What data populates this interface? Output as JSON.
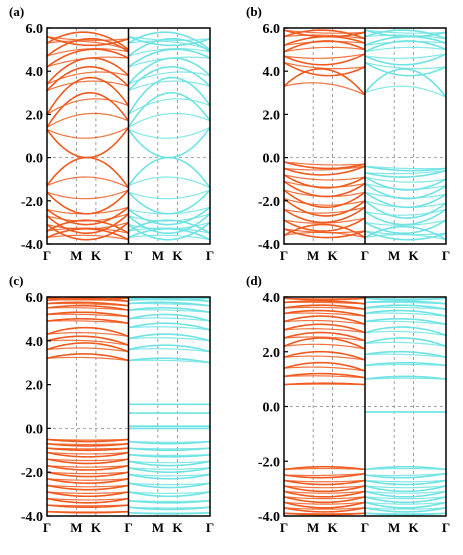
{
  "colors": {
    "spin_up": "#f05a1e",
    "spin_down": "#6fe3e3",
    "frame": "#000000",
    "guide": "#888888"
  },
  "chart_data": [
    {
      "type": "line",
      "panel_label": "(a)",
      "ylim": [
        -4.0,
        6.0
      ],
      "yticks": [
        "6.0",
        "4.0",
        "2.0",
        "0.0",
        "-2.0",
        "-4.0"
      ],
      "ytick_values": [
        6,
        4,
        2,
        0,
        -2,
        -4
      ],
      "kpoint_labels": [
        "Γ",
        "M",
        "K",
        "Γ",
        "M",
        "K",
        "Γ"
      ],
      "fermi_level": 0.0,
      "series": [
        {
          "name": "",
          "color_key": "spin_up",
          "bands": [
            {
              "start": 5.6,
              "mid": 5.2,
              "end": 5.5
            },
            {
              "start": 5.3,
              "mid": 5.8,
              "end": 5.0
            },
            {
              "start": 4.7,
              "mid": 5.5,
              "end": 4.9
            },
            {
              "start": 4.2,
              "mid": 5.0,
              "end": 4.6
            },
            {
              "start": 3.4,
              "mid": 4.6,
              "end": 3.8
            },
            {
              "start": 3.1,
              "mid": 4.2,
              "end": 3.3
            },
            {
              "start": 2.0,
              "mid": 3.7,
              "end": 2.4
            },
            {
              "start": 1.4,
              "mid": 3.0,
              "end": 1.7
            },
            {
              "start": 1.3,
              "mid": 0.0,
              "end": 1.4
            },
            {
              "start": -1.3,
              "mid": 0.0,
              "end": -1.4
            },
            {
              "start": -1.6,
              "mid": -2.6,
              "end": -1.5
            },
            {
              "start": -2.4,
              "mid": -3.1,
              "end": -2.3
            },
            {
              "start": -2.7,
              "mid": -3.5,
              "end": -2.6
            },
            {
              "start": -3.1,
              "mid": -3.8,
              "end": -3.0
            },
            {
              "start": -3.4,
              "mid": -2.9,
              "end": -3.5
            },
            {
              "start": -3.7,
              "mid": -3.3,
              "end": -3.8
            }
          ]
        },
        {
          "name": "",
          "color_key": "spin_down",
          "bands": [
            {
              "start": 5.6,
              "mid": 5.2,
              "end": 5.5
            },
            {
              "start": 5.3,
              "mid": 5.8,
              "end": 5.0
            },
            {
              "start": 4.7,
              "mid": 5.5,
              "end": 4.9
            },
            {
              "start": 4.2,
              "mid": 5.0,
              "end": 4.6
            },
            {
              "start": 3.4,
              "mid": 4.6,
              "end": 3.8
            },
            {
              "start": 3.1,
              "mid": 4.2,
              "end": 3.3
            },
            {
              "start": 2.0,
              "mid": 3.7,
              "end": 2.4
            },
            {
              "start": 1.4,
              "mid": 3.0,
              "end": 1.7
            },
            {
              "start": 1.3,
              "mid": 0.0,
              "end": 1.4
            },
            {
              "start": -1.3,
              "mid": 0.0,
              "end": -1.4
            },
            {
              "start": -1.6,
              "mid": -2.6,
              "end": -1.5
            },
            {
              "start": -2.4,
              "mid": -3.1,
              "end": -2.3
            },
            {
              "start": -2.7,
              "mid": -3.5,
              "end": -2.6
            },
            {
              "start": -3.1,
              "mid": -3.8,
              "end": -3.0
            },
            {
              "start": -3.4,
              "mid": -2.9,
              "end": -3.5
            },
            {
              "start": -3.7,
              "mid": -3.3,
              "end": -3.8
            }
          ]
        }
      ]
    },
    {
      "type": "line",
      "panel_label": "(b)",
      "ylim": [
        -4.0,
        6.0
      ],
      "yticks": [
        "6.0",
        "4.0",
        "2.0",
        "0.0",
        "-2.0",
        "-4.0"
      ],
      "ytick_values": [
        6,
        4,
        2,
        0,
        -2,
        -4
      ],
      "kpoint_labels": [
        "Γ",
        "M",
        "K",
        "Γ",
        "M",
        "K",
        "Γ"
      ],
      "fermi_level": 0.0,
      "series": [
        {
          "name": "",
          "color_key": "spin_up",
          "bands": [
            {
              "start": 5.9,
              "mid": 5.6,
              "end": 5.8
            },
            {
              "start": 5.6,
              "mid": 5.9,
              "end": 5.5
            },
            {
              "start": 5.2,
              "mid": 5.6,
              "end": 5.3
            },
            {
              "start": 4.9,
              "mid": 5.4,
              "end": 5.0
            },
            {
              "start": 4.7,
              "mid": 4.3,
              "end": 4.8
            },
            {
              "start": 4.4,
              "mid": 3.8,
              "end": 4.2
            },
            {
              "start": 3.3,
              "mid": 4.1,
              "end": 2.9
            },
            {
              "start": -0.2,
              "mid": -0.5,
              "end": -0.3
            },
            {
              "start": -0.5,
              "mid": -0.8,
              "end": -0.4
            },
            {
              "start": -0.8,
              "mid": -1.4,
              "end": -0.9
            },
            {
              "start": -1.1,
              "mid": -1.8,
              "end": -1.2
            },
            {
              "start": -1.5,
              "mid": -2.3,
              "end": -1.6
            },
            {
              "start": -1.9,
              "mid": -2.7,
              "end": -2.0
            },
            {
              "start": -2.4,
              "mid": -3.0,
              "end": -2.3
            },
            {
              "start": -2.9,
              "mid": -3.4,
              "end": -2.8
            },
            {
              "start": -3.3,
              "mid": -3.7,
              "end": -3.4
            },
            {
              "start": -3.6,
              "mid": -3.1,
              "end": -3.7
            }
          ]
        },
        {
          "name": "",
          "color_key": "spin_down",
          "bands": [
            {
              "start": 5.9,
              "mid": 5.6,
              "end": 5.8
            },
            {
              "start": 5.6,
              "mid": 5.9,
              "end": 5.5
            },
            {
              "start": 5.2,
              "mid": 5.6,
              "end": 5.3
            },
            {
              "start": 4.9,
              "mid": 5.4,
              "end": 5.0
            },
            {
              "start": 4.7,
              "mid": 4.3,
              "end": 4.8
            },
            {
              "start": 4.4,
              "mid": 3.8,
              "end": 4.2
            },
            {
              "start": 3.0,
              "mid": 4.1,
              "end": 2.8
            },
            {
              "start": -0.4,
              "mid": -0.6,
              "end": -0.5
            },
            {
              "start": -0.7,
              "mid": -0.9,
              "end": -0.6
            },
            {
              "start": -0.9,
              "mid": -1.5,
              "end": -1.0
            },
            {
              "start": -1.2,
              "mid": -1.9,
              "end": -1.3
            },
            {
              "start": -1.6,
              "mid": -2.3,
              "end": -1.7
            },
            {
              "start": -2.0,
              "mid": -2.8,
              "end": -2.1
            },
            {
              "start": -2.5,
              "mid": -3.1,
              "end": -2.4
            },
            {
              "start": -3.0,
              "mid": -3.5,
              "end": -2.9
            },
            {
              "start": -3.4,
              "mid": -3.8,
              "end": -3.5
            },
            {
              "start": -3.7,
              "mid": -3.2,
              "end": -3.8
            }
          ]
        }
      ]
    },
    {
      "type": "line",
      "panel_label": "(c)",
      "ylim": [
        -4.0,
        6.0
      ],
      "yticks": [
        "6.0",
        "4.0",
        "2.0",
        "0.0",
        "-2.0",
        "-4.0"
      ],
      "ytick_values": [
        6,
        4,
        2,
        0,
        -2,
        -4
      ],
      "kpoint_labels": [
        "Γ",
        "M",
        "K",
        "Γ",
        "M",
        "K",
        "Γ"
      ],
      "fermi_level": 0.0,
      "series": [
        {
          "name": "",
          "color_key": "spin_up",
          "bands": [
            {
              "start": 5.95,
              "mid": 5.9,
              "end": 5.95
            },
            {
              "start": 5.85,
              "mid": 5.95,
              "end": 5.8
            },
            {
              "start": 5.7,
              "mid": 5.75,
              "end": 5.6
            },
            {
              "start": 5.5,
              "mid": 5.6,
              "end": 5.4
            },
            {
              "start": 5.2,
              "mid": 5.3,
              "end": 5.1
            },
            {
              "start": 4.9,
              "mid": 5.0,
              "end": 4.8
            },
            {
              "start": 4.3,
              "mid": 4.6,
              "end": 4.2
            },
            {
              "start": 4.0,
              "mid": 4.2,
              "end": 3.8
            },
            {
              "start": 3.6,
              "mid": 3.9,
              "end": 3.5
            },
            {
              "start": 3.2,
              "mid": 3.4,
              "end": 3.1
            },
            {
              "start": -0.5,
              "mid": -0.6,
              "end": -0.5
            },
            {
              "start": -0.7,
              "mid": -0.8,
              "end": -0.7
            },
            {
              "start": -0.9,
              "mid": -1.0,
              "end": -0.9
            },
            {
              "start": -1.1,
              "mid": -1.3,
              "end": -1.1
            },
            {
              "start": -1.4,
              "mid": -1.6,
              "end": -1.4
            },
            {
              "start": -1.7,
              "mid": -1.9,
              "end": -1.7
            },
            {
              "start": -2.0,
              "mid": -2.2,
              "end": -2.0
            },
            {
              "start": -2.3,
              "mid": -2.5,
              "end": -2.3
            },
            {
              "start": -2.6,
              "mid": -2.8,
              "end": -2.6
            },
            {
              "start": -2.9,
              "mid": -3.1,
              "end": -2.9
            },
            {
              "start": -3.2,
              "mid": -3.4,
              "end": -3.2
            },
            {
              "start": -3.5,
              "mid": -3.6,
              "end": -3.5
            },
            {
              "start": -3.8,
              "mid": -3.85,
              "end": -3.8
            }
          ]
        },
        {
          "name": "",
          "color_key": "spin_down",
          "bands": [
            {
              "start": 5.95,
              "mid": 5.9,
              "end": 5.95
            },
            {
              "start": 5.85,
              "mid": 5.95,
              "end": 5.8
            },
            {
              "start": 5.7,
              "mid": 5.75,
              "end": 5.6
            },
            {
              "start": 5.4,
              "mid": 5.5,
              "end": 5.3
            },
            {
              "start": 5.0,
              "mid": 5.2,
              "end": 4.9
            },
            {
              "start": 4.6,
              "mid": 4.8,
              "end": 4.5
            },
            {
              "start": 4.1,
              "mid": 4.3,
              "end": 4.0
            },
            {
              "start": 3.6,
              "mid": 3.8,
              "end": 3.5
            },
            {
              "start": 3.1,
              "mid": 3.2,
              "end": 3.0
            },
            {
              "start": 1.1,
              "mid": 1.1,
              "end": 1.1
            },
            {
              "start": 0.7,
              "mid": 0.7,
              "end": 0.7
            },
            {
              "start": 0.1,
              "mid": 0.1,
              "end": 0.1
            },
            {
              "start": 0.0,
              "mid": 0.0,
              "end": 0.0
            },
            {
              "start": -0.6,
              "mid": -0.7,
              "end": -0.6
            },
            {
              "start": -0.9,
              "mid": -1.0,
              "end": -0.9
            },
            {
              "start": -1.2,
              "mid": -1.3,
              "end": -1.2
            },
            {
              "start": -1.5,
              "mid": -1.7,
              "end": -1.5
            },
            {
              "start": -1.8,
              "mid": -2.0,
              "end": -1.8
            },
            {
              "start": -2.1,
              "mid": -2.3,
              "end": -2.1
            },
            {
              "start": -2.5,
              "mid": -2.7,
              "end": -2.5
            },
            {
              "start": -2.9,
              "mid": -3.1,
              "end": -2.9
            },
            {
              "start": -3.3,
              "mid": -3.4,
              "end": -3.3
            },
            {
              "start": -3.6,
              "mid": -3.7,
              "end": -3.6
            },
            {
              "start": -3.85,
              "mid": -3.9,
              "end": -3.85
            }
          ]
        }
      ]
    },
    {
      "type": "line",
      "panel_label": "(d)",
      "ylim": [
        -4.0,
        4.0
      ],
      "yticks": [
        "4.0",
        "2.0",
        "0.0",
        "-2.0",
        "-4.0"
      ],
      "ytick_values": [
        4,
        2,
        0,
        -2,
        -4
      ],
      "kpoint_labels": [
        "Γ",
        "M",
        "K",
        "Γ",
        "M",
        "K",
        "Γ"
      ],
      "fermi_level": 0.0,
      "series": [
        {
          "name": "",
          "color_key": "spin_up",
          "bands": [
            {
              "start": 3.95,
              "mid": 3.9,
              "end": 3.95
            },
            {
              "start": 3.8,
              "mid": 3.85,
              "end": 3.75
            },
            {
              "start": 3.6,
              "mid": 3.7,
              "end": 3.55
            },
            {
              "start": 3.4,
              "mid": 3.5,
              "end": 3.3
            },
            {
              "start": 3.1,
              "mid": 3.3,
              "end": 3.0
            },
            {
              "start": 2.8,
              "mid": 3.0,
              "end": 2.7
            },
            {
              "start": 2.5,
              "mid": 2.7,
              "end": 2.4
            },
            {
              "start": 2.2,
              "mid": 2.5,
              "end": 2.1
            },
            {
              "start": 1.8,
              "mid": 2.0,
              "end": 1.7
            },
            {
              "start": 1.4,
              "mid": 1.6,
              "end": 1.3
            },
            {
              "start": 1.1,
              "mid": 1.2,
              "end": 1.05
            },
            {
              "start": 0.8,
              "mid": 0.85,
              "end": 0.8
            },
            {
              "start": -2.3,
              "mid": -2.2,
              "end": -2.3
            },
            {
              "start": -2.5,
              "mid": -2.6,
              "end": -2.45
            },
            {
              "start": -2.7,
              "mid": -2.85,
              "end": -2.7
            },
            {
              "start": -2.9,
              "mid": -3.1,
              "end": -2.9
            },
            {
              "start": -3.1,
              "mid": -3.3,
              "end": -3.1
            },
            {
              "start": -3.3,
              "mid": -3.5,
              "end": -3.3
            },
            {
              "start": -3.5,
              "mid": -3.7,
              "end": -3.5
            },
            {
              "start": -3.7,
              "mid": -3.85,
              "end": -3.7
            },
            {
              "start": -3.9,
              "mid": -3.95,
              "end": -3.9
            }
          ]
        },
        {
          "name": "",
          "color_key": "spin_down",
          "bands": [
            {
              "start": 3.95,
              "mid": 3.9,
              "end": 3.95
            },
            {
              "start": 3.8,
              "mid": 3.85,
              "end": 3.75
            },
            {
              "start": 3.6,
              "mid": 3.7,
              "end": 3.55
            },
            {
              "start": 3.4,
              "mid": 3.5,
              "end": 3.3
            },
            {
              "start": 3.1,
              "mid": 3.2,
              "end": 3.0
            },
            {
              "start": 2.7,
              "mid": 2.9,
              "end": 2.6
            },
            {
              "start": 2.3,
              "mid": 2.5,
              "end": 2.2
            },
            {
              "start": 1.9,
              "mid": 2.0,
              "end": 1.8
            },
            {
              "start": 1.5,
              "mid": 1.6,
              "end": 1.5
            },
            {
              "start": 1.0,
              "mid": 1.1,
              "end": 1.0
            },
            {
              "start": -0.2,
              "mid": -0.2,
              "end": -0.2
            },
            {
              "start": -2.3,
              "mid": -2.2,
              "end": -2.3
            },
            {
              "start": -2.5,
              "mid": -2.6,
              "end": -2.45
            },
            {
              "start": -2.7,
              "mid": -2.85,
              "end": -2.7
            },
            {
              "start": -2.9,
              "mid": -3.1,
              "end": -2.9
            },
            {
              "start": -3.1,
              "mid": -3.3,
              "end": -3.1
            },
            {
              "start": -3.3,
              "mid": -3.5,
              "end": -3.3
            },
            {
              "start": -3.5,
              "mid": -3.7,
              "end": -3.5
            },
            {
              "start": -3.7,
              "mid": -3.85,
              "end": -3.7
            },
            {
              "start": -3.9,
              "mid": -3.95,
              "end": -3.9
            }
          ]
        }
      ]
    }
  ]
}
